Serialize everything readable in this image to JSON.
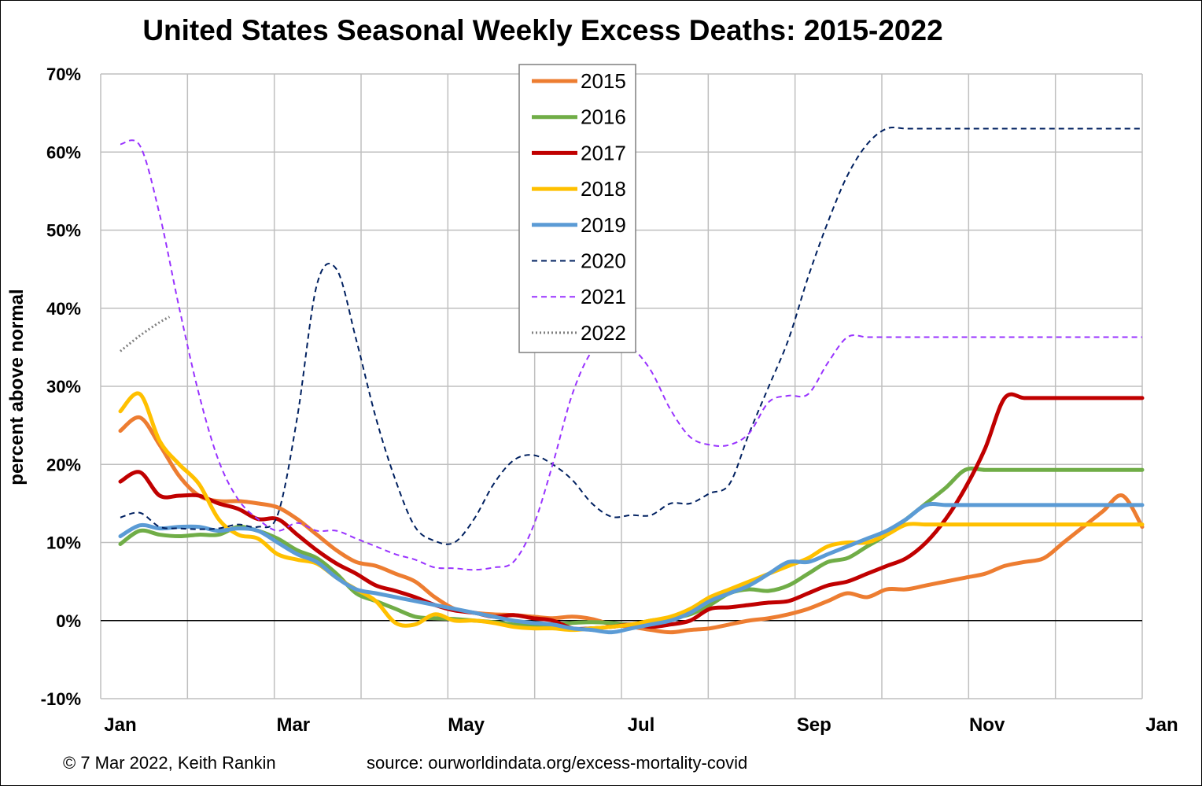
{
  "title": "United States Seasonal Weekly Excess Deaths: 2015-2022",
  "footer": {
    "credit": "© 7 Mar 2022, Keith Rankin",
    "source": "source: ourworldindata.org/excess-mortality-covid"
  },
  "chart_data": {
    "type": "line",
    "title": "United States Seasonal Weekly Excess Deaths: 2015-2022",
    "xlabel": "",
    "ylabel": "percent above normal",
    "x_unit": "week of year",
    "xlim": [
      0,
      53
    ],
    "ylim": [
      -10,
      70
    ],
    "y_ticks": [
      -10,
      0,
      10,
      20,
      30,
      40,
      50,
      60,
      70
    ],
    "y_tick_labels": [
      "-10%",
      "0%",
      "10%",
      "20%",
      "30%",
      "40%",
      "50%",
      "60%",
      "70%"
    ],
    "x_tick_labels": [
      "Jan",
      "Mar",
      "May",
      "Jul",
      "Sep",
      "Nov",
      "Jan"
    ],
    "x_tick_positions": [
      1,
      9.8,
      18.6,
      27.5,
      36.3,
      45.1,
      54
    ],
    "grid": true,
    "legend_position": "top-center",
    "series": [
      {
        "name": "2015",
        "color": "#ED7D31",
        "style": "solid",
        "x": [
          1,
          2,
          3,
          4,
          5,
          6,
          7,
          8,
          9,
          10,
          11,
          12,
          13,
          14,
          15,
          16,
          17,
          18,
          19,
          20,
          21,
          22,
          23,
          24,
          25,
          26,
          27,
          28,
          29,
          30,
          31,
          32,
          33,
          34,
          35,
          36,
          37,
          38,
          39,
          40,
          41,
          42,
          43,
          44,
          45,
          46,
          47,
          48,
          49,
          50,
          51,
          52,
          53
        ],
        "y": [
          24.3,
          26,
          22.5,
          18.5,
          16,
          15.3,
          15.3,
          15,
          14.5,
          13,
          11,
          9,
          7.5,
          7,
          6,
          5,
          3,
          1.5,
          1,
          0.8,
          0.7,
          0.5,
          0.3,
          0.5,
          0.2,
          -0.5,
          -0.8,
          -1.2,
          -1.5,
          -1.2,
          -1,
          -0.5,
          0,
          0.3,
          0.8,
          1.5,
          2.5,
          3.5,
          3,
          4,
          4,
          4.5,
          5,
          5.5,
          6,
          7,
          7.5,
          8,
          10,
          12,
          14,
          16,
          12
        ]
      },
      {
        "name": "2016",
        "color": "#70AD47",
        "style": "solid",
        "x": [
          1,
          2,
          3,
          4,
          5,
          6,
          7,
          8,
          9,
          10,
          11,
          12,
          13,
          14,
          15,
          16,
          17,
          18,
          19,
          20,
          21,
          22,
          23,
          24,
          25,
          26,
          27,
          28,
          29,
          30,
          31,
          32,
          33,
          34,
          35,
          36,
          37,
          38,
          39,
          40,
          41,
          42,
          43,
          44,
          45,
          46,
          47,
          48,
          49,
          50,
          51,
          52,
          53
        ],
        "y": [
          9.8,
          11.5,
          11,
          10.8,
          11,
          11,
          12,
          11.5,
          10.5,
          9,
          8,
          6,
          3.5,
          2.5,
          1.5,
          0.5,
          0.3,
          0.2,
          0,
          -0.2,
          -0.5,
          -0.7,
          -0.5,
          -0.3,
          -0.2,
          -0.3,
          -0.5,
          0,
          0.3,
          0.8,
          2,
          3.5,
          4,
          3.8,
          4.5,
          6,
          7.5,
          8,
          9.5,
          11,
          13,
          15,
          17,
          19.3,
          19.3,
          19.3,
          19.3,
          19.3,
          19.3,
          19.3,
          19.3,
          19.3,
          19.3
        ]
      },
      {
        "name": "2017",
        "color": "#C00000",
        "style": "solid",
        "x": [
          1,
          2,
          3,
          4,
          5,
          6,
          7,
          8,
          9,
          10,
          11,
          12,
          13,
          14,
          15,
          16,
          17,
          18,
          19,
          20,
          21,
          22,
          23,
          24,
          25,
          26,
          27,
          28,
          29,
          30,
          31,
          32,
          33,
          34,
          35,
          36,
          37,
          38,
          39,
          40,
          41,
          42,
          43,
          44,
          45,
          46,
          47,
          48,
          49,
          50,
          51,
          52,
          53
        ],
        "y": [
          17.8,
          19,
          16,
          16,
          16,
          15,
          14.3,
          13,
          13,
          11,
          9,
          7.3,
          6,
          4.5,
          3.8,
          3,
          2,
          1.3,
          1,
          0.5,
          0.7,
          0.3,
          0,
          -1,
          -1,
          -0.8,
          -0.5,
          -0.8,
          -0.5,
          0,
          1.5,
          1.7,
          2,
          2.3,
          2.5,
          3.5,
          4.5,
          5,
          6,
          7,
          8,
          10,
          13,
          17,
          22,
          28.5,
          28.5,
          28.5,
          28.5,
          28.5,
          28.5,
          28.5,
          28.5
        ]
      },
      {
        "name": "2018",
        "color": "#FFC000",
        "style": "solid",
        "x": [
          1,
          2,
          3,
          4,
          5,
          6,
          7,
          8,
          9,
          10,
          11,
          12,
          13,
          14,
          15,
          16,
          17,
          18,
          19,
          20,
          21,
          22,
          23,
          24,
          25,
          26,
          27,
          28,
          29,
          30,
          31,
          32,
          33,
          34,
          35,
          36,
          37,
          38,
          39,
          40,
          41,
          42,
          43,
          44,
          45,
          46,
          47,
          48,
          49,
          50,
          51,
          52,
          53
        ],
        "y": [
          26.8,
          29,
          23,
          20,
          17.5,
          13,
          11,
          10.5,
          8.5,
          7.8,
          7.3,
          5.5,
          4,
          2.5,
          -0.3,
          -0.5,
          0.8,
          0,
          0,
          -0.3,
          -0.8,
          -1,
          -1,
          -1.2,
          -1,
          -0.8,
          -0.5,
          0,
          0.5,
          1.5,
          3,
          4,
          5,
          6,
          7,
          8,
          9.5,
          10,
          10,
          11,
          12.3,
          12.3,
          12.3,
          12.3,
          12.3,
          12.3,
          12.3,
          12.3,
          12.3,
          12.3,
          12.3,
          12.3,
          12.3
        ]
      },
      {
        "name": "2019",
        "color": "#5B9BD5",
        "style": "solid",
        "x": [
          1,
          2,
          3,
          4,
          5,
          6,
          7,
          8,
          9,
          10,
          11,
          12,
          13,
          14,
          15,
          16,
          17,
          18,
          19,
          20,
          21,
          22,
          23,
          24,
          25,
          26,
          27,
          28,
          29,
          30,
          31,
          32,
          33,
          34,
          35,
          36,
          37,
          38,
          39,
          40,
          41,
          42,
          43,
          44,
          45,
          46,
          47,
          48,
          49,
          50,
          51,
          52,
          53
        ],
        "y": [
          10.8,
          12.2,
          11.8,
          12,
          12,
          11.5,
          11.8,
          11.5,
          10,
          8.5,
          7.5,
          5.5,
          4,
          3.5,
          3,
          2.5,
          2,
          1.5,
          1,
          0.5,
          0,
          -0.3,
          -0.5,
          -1,
          -1.2,
          -1.5,
          -1,
          -0.5,
          0,
          1,
          2.5,
          3.5,
          4.5,
          6,
          7.5,
          7.5,
          8.5,
          9.5,
          10.5,
          11.5,
          13,
          14.8,
          14.8,
          14.8,
          14.8,
          14.8,
          14.8,
          14.8,
          14.8,
          14.8,
          14.8,
          14.8,
          14.8
        ]
      },
      {
        "name": "2020",
        "color": "#002060",
        "style": "dashed",
        "x": [
          1,
          2,
          3,
          4,
          5,
          6,
          7,
          8,
          9,
          10,
          11,
          12,
          13,
          14,
          15,
          16,
          17,
          18,
          19,
          20,
          21,
          22,
          23,
          24,
          25,
          26,
          27,
          28,
          29,
          30,
          31,
          32,
          33,
          34,
          35,
          36,
          37,
          38,
          39,
          40,
          41,
          42,
          43,
          44,
          45,
          46,
          47,
          48,
          49,
          50,
          51,
          52,
          53
        ],
        "y": [
          13.2,
          13.8,
          12,
          11.8,
          11.7,
          11.8,
          12.3,
          12,
          13.5,
          26,
          43,
          45,
          36,
          26,
          18,
          12,
          10.2,
          10,
          13,
          17.5,
          20.5,
          21.2,
          20,
          18,
          15,
          13.3,
          13.5,
          13.5,
          15,
          15,
          16.3,
          17.5,
          24,
          30,
          36,
          44,
          51,
          57,
          61,
          63,
          63,
          63,
          63,
          63,
          63,
          63,
          63,
          63,
          63,
          63,
          63,
          63,
          63
        ]
      },
      {
        "name": "2021",
        "color": "#9933FF",
        "style": "dashed",
        "x": [
          1,
          2,
          3,
          4,
          5,
          6,
          7,
          8,
          9,
          10,
          11,
          12,
          13,
          14,
          15,
          16,
          17,
          18,
          19,
          20,
          21,
          22,
          23,
          24,
          25,
          26,
          27,
          28,
          29,
          30,
          31,
          32,
          33,
          34,
          35,
          36,
          37,
          38,
          39,
          40,
          41,
          42,
          43,
          44,
          45,
          46,
          47,
          48,
          49,
          50,
          51,
          52,
          53
        ],
        "y": [
          61,
          60.8,
          52,
          40,
          29,
          20.5,
          15.5,
          13,
          11.5,
          12.5,
          11.5,
          11.5,
          10.5,
          9.5,
          8.5,
          7.8,
          6.8,
          6.7,
          6.5,
          6.8,
          7.5,
          12,
          20,
          29,
          34.5,
          36,
          35,
          32,
          27,
          23.5,
          22.5,
          22.5,
          24,
          28,
          28.8,
          29,
          33,
          36.3,
          36.3,
          36.3,
          36.3,
          36.3,
          36.3,
          36.3,
          36.3,
          36.3,
          36.3,
          36.3,
          36.3,
          36.3,
          36.3,
          36.3,
          36.3
        ]
      },
      {
        "name": "2022",
        "color": "#7F7F7F",
        "style": "dotted",
        "x": [
          1,
          2,
          3,
          3.5
        ],
        "y": [
          34.5,
          36.5,
          38.2,
          38.9
        ]
      }
    ]
  }
}
